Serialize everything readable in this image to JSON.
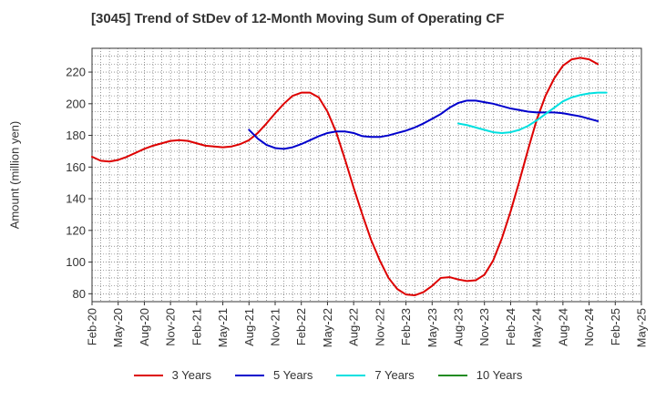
{
  "chart_data": {
    "type": "line",
    "title": "[3045]  Trend of StDev of 12-Month Moving Sum of Operating CF",
    "xlabel": "",
    "ylabel": "Amount (million yen)",
    "ylim": [
      75,
      235
    ],
    "yticks": [
      80,
      100,
      120,
      140,
      160,
      180,
      200,
      220
    ],
    "xlim": [
      0,
      63
    ],
    "xtick_labels": [
      "Feb-20",
      "May-20",
      "Aug-20",
      "Nov-20",
      "Feb-21",
      "May-21",
      "Aug-21",
      "Nov-21",
      "Feb-22",
      "May-22",
      "Aug-22",
      "Nov-22",
      "Feb-23",
      "May-23",
      "Aug-23",
      "Nov-23",
      "Feb-24",
      "May-24",
      "Aug-24",
      "Nov-24",
      "Feb-25",
      "May-25"
    ],
    "grid": true,
    "legend_position": "bottom",
    "series": [
      {
        "name": "3 Years",
        "color": "#dd0000",
        "start_month_index": 0,
        "values": [
          166.5,
          164,
          163.5,
          164.5,
          166.5,
          169,
          171.5,
          173.5,
          175,
          176.5,
          177,
          176.5,
          175,
          173.5,
          173,
          172.5,
          173,
          174.5,
          177,
          181.5,
          187.5,
          194,
          200,
          205,
          207,
          207,
          204,
          195,
          182,
          165,
          147,
          130,
          114,
          101,
          90,
          83,
          79.5,
          79,
          81,
          85,
          90,
          90.5,
          89,
          88,
          88.5,
          92,
          101,
          115,
          132,
          151,
          171,
          190,
          205,
          216,
          224,
          228,
          229,
          228,
          225
        ]
      },
      {
        "name": "5 Years",
        "color": "#0000cc",
        "start_month_index": 18,
        "values": [
          183.5,
          178,
          174,
          172,
          171.5,
          172.5,
          174.5,
          177,
          179.5,
          181.5,
          182.5,
          182.5,
          181.5,
          179.5,
          179,
          179,
          180,
          181.5,
          183,
          185,
          187.5,
          190.5,
          193.5,
          197.5,
          200.5,
          202,
          202,
          201,
          200,
          198.5,
          197,
          196,
          195,
          194.5,
          194.5,
          194.5,
          194,
          193,
          192,
          190.5,
          189
        ]
      },
      {
        "name": "7 Years",
        "color": "#00e0e0",
        "start_month_index": 42,
        "values": [
          187.5,
          186.5,
          185,
          183.5,
          182,
          181.5,
          182,
          183.5,
          186,
          189.5,
          193.5,
          197.5,
          201.5,
          204,
          205.5,
          206.5,
          207,
          207
        ]
      },
      {
        "name": "10 Years",
        "color": "#228B22",
        "start_month_index": 0,
        "values": []
      }
    ]
  }
}
